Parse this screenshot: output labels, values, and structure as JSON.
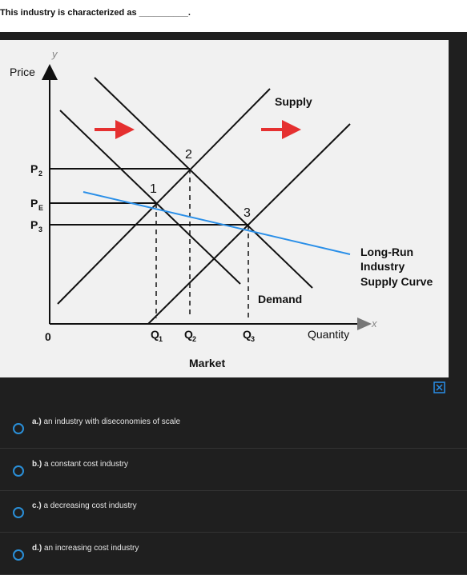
{
  "question": {
    "text": "This industry is characterized as",
    "blank": "__________."
  },
  "diagram": {
    "y_axis": {
      "symbol": "y",
      "label": "Price"
    },
    "x_axis": {
      "symbol": "x",
      "label": "Quantity"
    },
    "origin": "0",
    "price_labels": [
      {
        "main": "P",
        "sub": "2"
      },
      {
        "main": "P",
        "sub": "E"
      },
      {
        "main": "P",
        "sub": "3"
      }
    ],
    "quantity_labels": [
      {
        "main": "Q",
        "sub": "1"
      },
      {
        "main": "Q",
        "sub": "2"
      },
      {
        "main": "Q",
        "sub": "3"
      }
    ],
    "points": [
      "1",
      "2",
      "3"
    ],
    "supply": "Supply",
    "demand": "Demand",
    "long_run": [
      "Long-Run",
      "Industry",
      "Supply Curve"
    ],
    "caption": "Market"
  },
  "options": [
    {
      "letter": "a.)",
      "text": "an industry with diseconomies of scale"
    },
    {
      "letter": "b.)",
      "text": "a constant cost industry"
    },
    {
      "letter": "c.)",
      "text": "a decreasing cost industry"
    },
    {
      "letter": "d.)",
      "text": "an increasing cost industry"
    }
  ]
}
